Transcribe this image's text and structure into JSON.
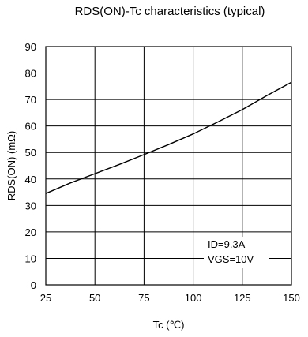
{
  "chart_data": {
    "type": "line",
    "title": "RDS(ON)-Tc characteristics (typical)",
    "xlabel": "Tc (℃)",
    "ylabel": "RDS(ON) (mΩ)",
    "xlim": [
      25,
      150
    ],
    "ylim": [
      0,
      90
    ],
    "xticks": [
      25,
      50,
      75,
      100,
      125,
      150
    ],
    "yticks": [
      0,
      10,
      20,
      30,
      40,
      50,
      60,
      70,
      80,
      90
    ],
    "grid": true,
    "series": [
      {
        "x": [
          25,
          37.5,
          50,
          62.5,
          75,
          87.5,
          100,
          112.5,
          125,
          137.5,
          150
        ],
        "y": [
          34.5,
          38.5,
          42,
          45.5,
          49.2,
          53,
          57,
          61.5,
          66.2,
          71.5,
          76.5
        ]
      }
    ],
    "annotations": [
      "ID=9.3A",
      "VGS=10V"
    ]
  }
}
